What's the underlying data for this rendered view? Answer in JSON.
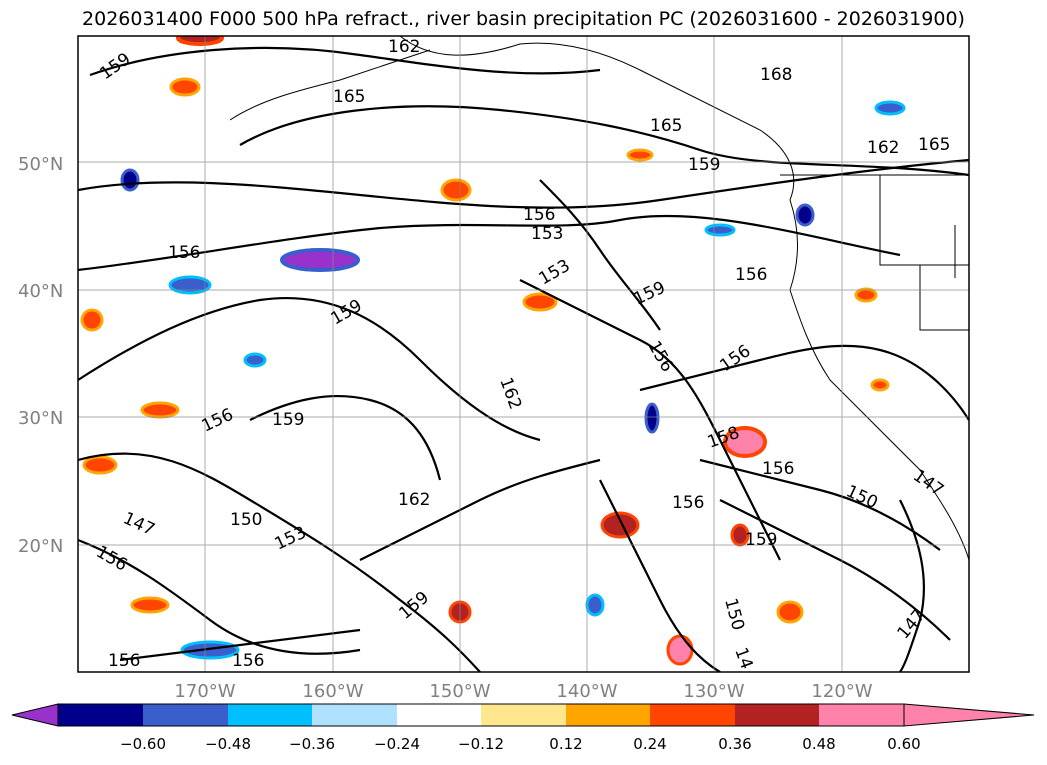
{
  "title": "2026031400 F000 500 hPa refract., river basin precipitation PC (2026031600 - 2026031900)",
  "lat_labels": [
    "50°N",
    "40°N",
    "30°N",
    "20°N"
  ],
  "lon_labels": [
    "170°W",
    "160°W",
    "150°W",
    "140°W",
    "130°W",
    "120°W"
  ],
  "contour_labels": [
    "159",
    "165",
    "162",
    "168",
    "165",
    "162",
    "165",
    "159",
    "156",
    "153",
    "156",
    "153",
    "159",
    "156",
    "159",
    "156",
    "156",
    "159",
    "162",
    "162",
    "158",
    "156",
    "156",
    "150",
    "147",
    "147",
    "150",
    "153",
    "159",
    "156",
    "150",
    "147",
    "156",
    "156",
    "14",
    "159",
    "156"
  ],
  "colorbar": {
    "ticks": [
      "−0.60",
      "−0.48",
      "−0.36",
      "−0.24",
      "−0.12",
      "0.12",
      "0.24",
      "0.36",
      "0.48",
      "0.60"
    ],
    "colors": [
      "#9932cc",
      "#00008b",
      "#3a5fcd",
      "#00bfff",
      "#b0e2ff",
      "#ffffff",
      "#ffe78f",
      "#ffa500",
      "#ff4500",
      "#b22222",
      "#ff82ab"
    ]
  }
}
